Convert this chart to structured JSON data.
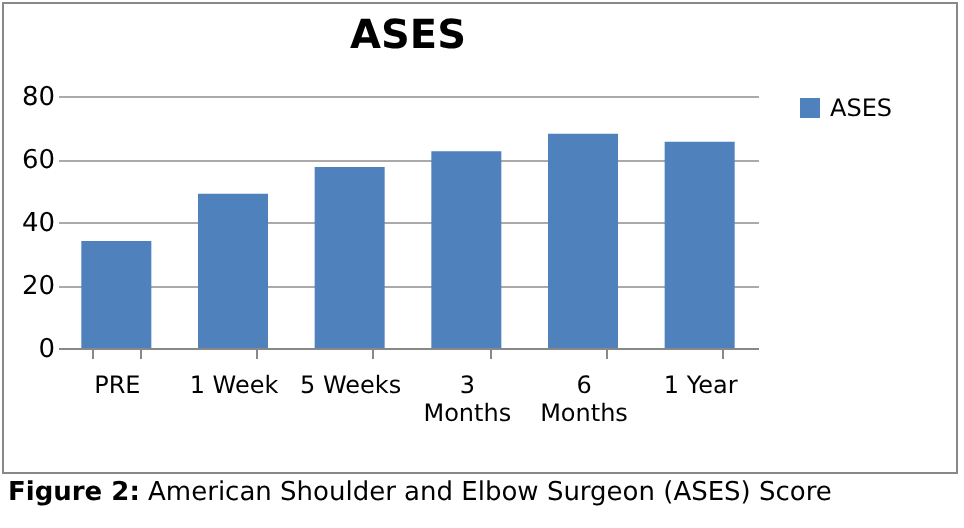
{
  "chart_data": {
    "type": "bar",
    "title": "ASES",
    "categories": [
      "PRE",
      "1 Week",
      "5 Weeks",
      "3 Months",
      "6 Months",
      "1 Year"
    ],
    "series": [
      {
        "name": "ASES",
        "color": "#4f81bd",
        "values": [
          34,
          49,
          57.5,
          62.5,
          68,
          65.5
        ]
      }
    ],
    "ylim": [
      0,
      80
    ],
    "yticks": [
      0,
      20,
      40,
      60,
      80
    ],
    "grid": "y",
    "legend": "right",
    "annotations": [
      "Figure 2: American Shoulder and Elbow Surgeon (ASES) Score"
    ]
  }
}
